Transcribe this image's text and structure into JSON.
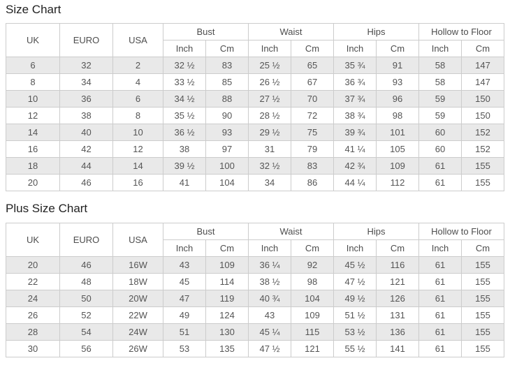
{
  "tables": [
    {
      "title": "Size Chart",
      "label_headers": [
        "UK",
        "EURO",
        "USA"
      ],
      "group_headers": [
        "Bust",
        "Waist",
        "Hips",
        "Hollow to Floor"
      ],
      "unit_headers": [
        "Inch",
        "Cm"
      ],
      "rows": [
        [
          "6",
          "32",
          "2",
          "32 ½",
          "83",
          "25 ½",
          "65",
          "35 ¾",
          "91",
          "58",
          "147"
        ],
        [
          "8",
          "34",
          "4",
          "33 ½",
          "85",
          "26 ½",
          "67",
          "36 ¾",
          "93",
          "58",
          "147"
        ],
        [
          "10",
          "36",
          "6",
          "34 ½",
          "88",
          "27 ½",
          "70",
          "37 ¾",
          "96",
          "59",
          "150"
        ],
        [
          "12",
          "38",
          "8",
          "35 ½",
          "90",
          "28 ½",
          "72",
          "38 ¾",
          "98",
          "59",
          "150"
        ],
        [
          "14",
          "40",
          "10",
          "36 ½",
          "93",
          "29 ½",
          "75",
          "39 ¾",
          "101",
          "60",
          "152"
        ],
        [
          "16",
          "42",
          "12",
          "38",
          "97",
          "31",
          "79",
          "41 ¼",
          "105",
          "60",
          "152"
        ],
        [
          "18",
          "44",
          "14",
          "39 ½",
          "100",
          "32 ½",
          "83",
          "42 ¾",
          "109",
          "61",
          "155"
        ],
        [
          "20",
          "46",
          "16",
          "41",
          "104",
          "34",
          "86",
          "44 ¼",
          "112",
          "61",
          "155"
        ]
      ]
    },
    {
      "title": "Plus Size Chart",
      "label_headers": [
        "UK",
        "EURO",
        "USA"
      ],
      "group_headers": [
        "Bust",
        "Waist",
        "Hips",
        "Hollow to Floor"
      ],
      "unit_headers": [
        "Inch",
        "Cm"
      ],
      "rows": [
        [
          "20",
          "46",
          "16W",
          "43",
          "109",
          "36 ¼",
          "92",
          "45 ½",
          "116",
          "61",
          "155"
        ],
        [
          "22",
          "48",
          "18W",
          "45",
          "114",
          "38 ½",
          "98",
          "47 ½",
          "121",
          "61",
          "155"
        ],
        [
          "24",
          "50",
          "20W",
          "47",
          "119",
          "40 ¾",
          "104",
          "49 ½",
          "126",
          "61",
          "155"
        ],
        [
          "26",
          "52",
          "22W",
          "49",
          "124",
          "43",
          "109",
          "51 ½",
          "131",
          "61",
          "155"
        ],
        [
          "28",
          "54",
          "24W",
          "51",
          "130",
          "45 ¼",
          "115",
          "53 ½",
          "136",
          "61",
          "155"
        ],
        [
          "30",
          "56",
          "26W",
          "53",
          "135",
          "47 ½",
          "121",
          "55 ½",
          "141",
          "61",
          "155"
        ]
      ]
    }
  ],
  "colors": {
    "zebra_row": "#e9e9e9",
    "border": "#cccccc",
    "text": "#555555",
    "title_text": "#222222"
  }
}
